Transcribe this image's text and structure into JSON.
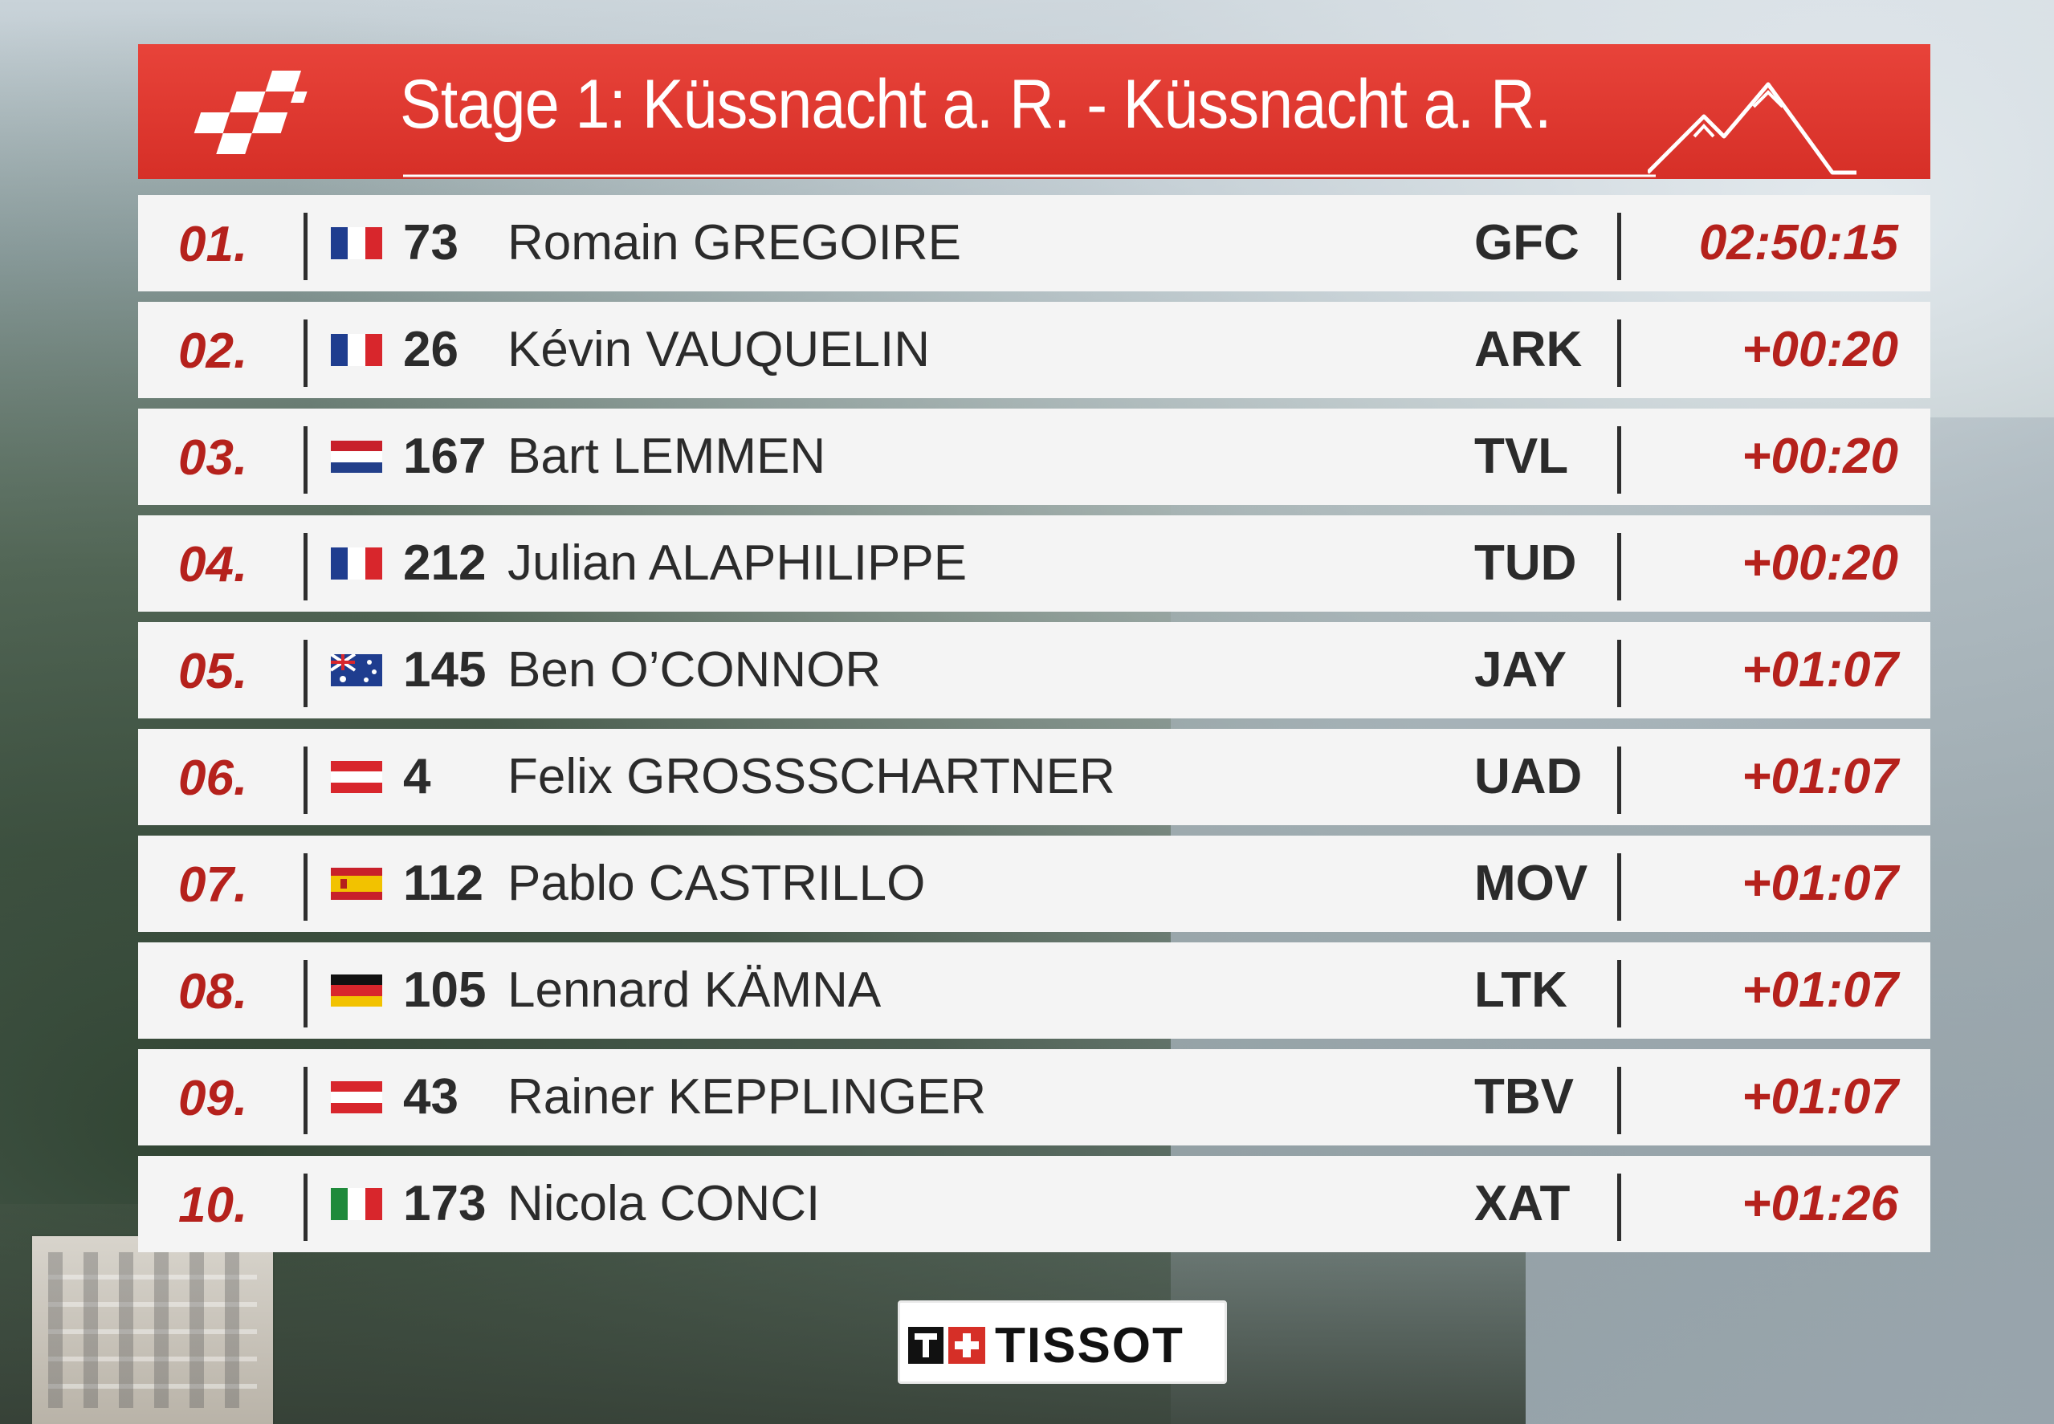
{
  "header": {
    "title": "Stage 1: Küssnacht a. R. - Küssnacht a. R.",
    "logo_icon": "tour-de-suisse-checkered-logo-icon",
    "profile_icon": "mountain-profile-icon",
    "color": "#d62f27"
  },
  "results": [
    {
      "pos": "01.",
      "flag": "france-flag-icon",
      "bib": "73",
      "name": "Romain GREGOIRE",
      "team": "GFC",
      "time": "02:50:15"
    },
    {
      "pos": "02.",
      "flag": "france-flag-icon",
      "bib": "26",
      "name": "Kévin VAUQUELIN",
      "team": "ARK",
      "time": "+00:20"
    },
    {
      "pos": "03.",
      "flag": "netherlands-flag-icon",
      "bib": "167",
      "name": "Bart LEMMEN",
      "team": "TVL",
      "time": "+00:20"
    },
    {
      "pos": "04.",
      "flag": "france-flag-icon",
      "bib": "212",
      "name": "Julian ALAPHILIPPE",
      "team": "TUD",
      "time": "+00:20"
    },
    {
      "pos": "05.",
      "flag": "australia-flag-icon",
      "bib": "145",
      "name": "Ben O’CONNOR",
      "team": "JAY",
      "time": "+01:07"
    },
    {
      "pos": "06.",
      "flag": "austria-flag-icon",
      "bib": "4",
      "name": "Felix GROSSSCHARTNER",
      "team": "UAD",
      "time": "+01:07"
    },
    {
      "pos": "07.",
      "flag": "spain-flag-icon",
      "bib": "112",
      "name": "Pablo CASTRILLO",
      "team": "MOV",
      "time": "+01:07"
    },
    {
      "pos": "08.",
      "flag": "germany-flag-icon",
      "bib": "105",
      "name": "Lennard KÄMNA",
      "team": "LTK",
      "time": "+01:07"
    },
    {
      "pos": "09.",
      "flag": "austria-flag-icon",
      "bib": "43",
      "name": "Rainer KEPPLINGER",
      "team": "TBV",
      "time": "+01:07"
    },
    {
      "pos": "10.",
      "flag": "italy-flag-icon",
      "bib": "173",
      "name": "Nicola CONCI",
      "team": "XAT",
      "time": "+01:26"
    }
  ],
  "sponsor": {
    "name": "TISSOT",
    "mark_icon": "tissot-cross-logo-icon"
  },
  "colors": {
    "accent_red": "#b5211c",
    "row_bg": "#f4f4f4",
    "text_dark": "#2b2b2b"
  }
}
